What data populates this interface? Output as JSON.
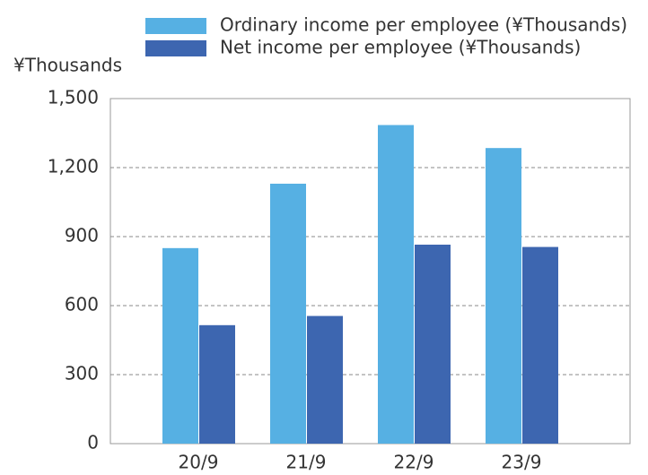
{
  "chart_data": {
    "type": "bar",
    "y_axis_label": "¥Thousands",
    "categories": [
      "20/9",
      "21/9",
      "22/9",
      "23/9"
    ],
    "series": [
      {
        "name": "Ordinary income per employee (¥Thousands)",
        "color": "#56b0e3",
        "values": [
          850,
          1130,
          1385,
          1285
        ]
      },
      {
        "name": "Net income per employee (¥Thousands)",
        "color": "#3d66b0",
        "values": [
          515,
          555,
          865,
          855
        ]
      }
    ],
    "ylim": [
      0,
      1500
    ],
    "yticks": [
      0,
      300,
      600,
      900,
      {
        "value": 1200,
        "label": "1,200"
      },
      {
        "value": 1500,
        "label": "1,500"
      }
    ],
    "grid": true
  }
}
